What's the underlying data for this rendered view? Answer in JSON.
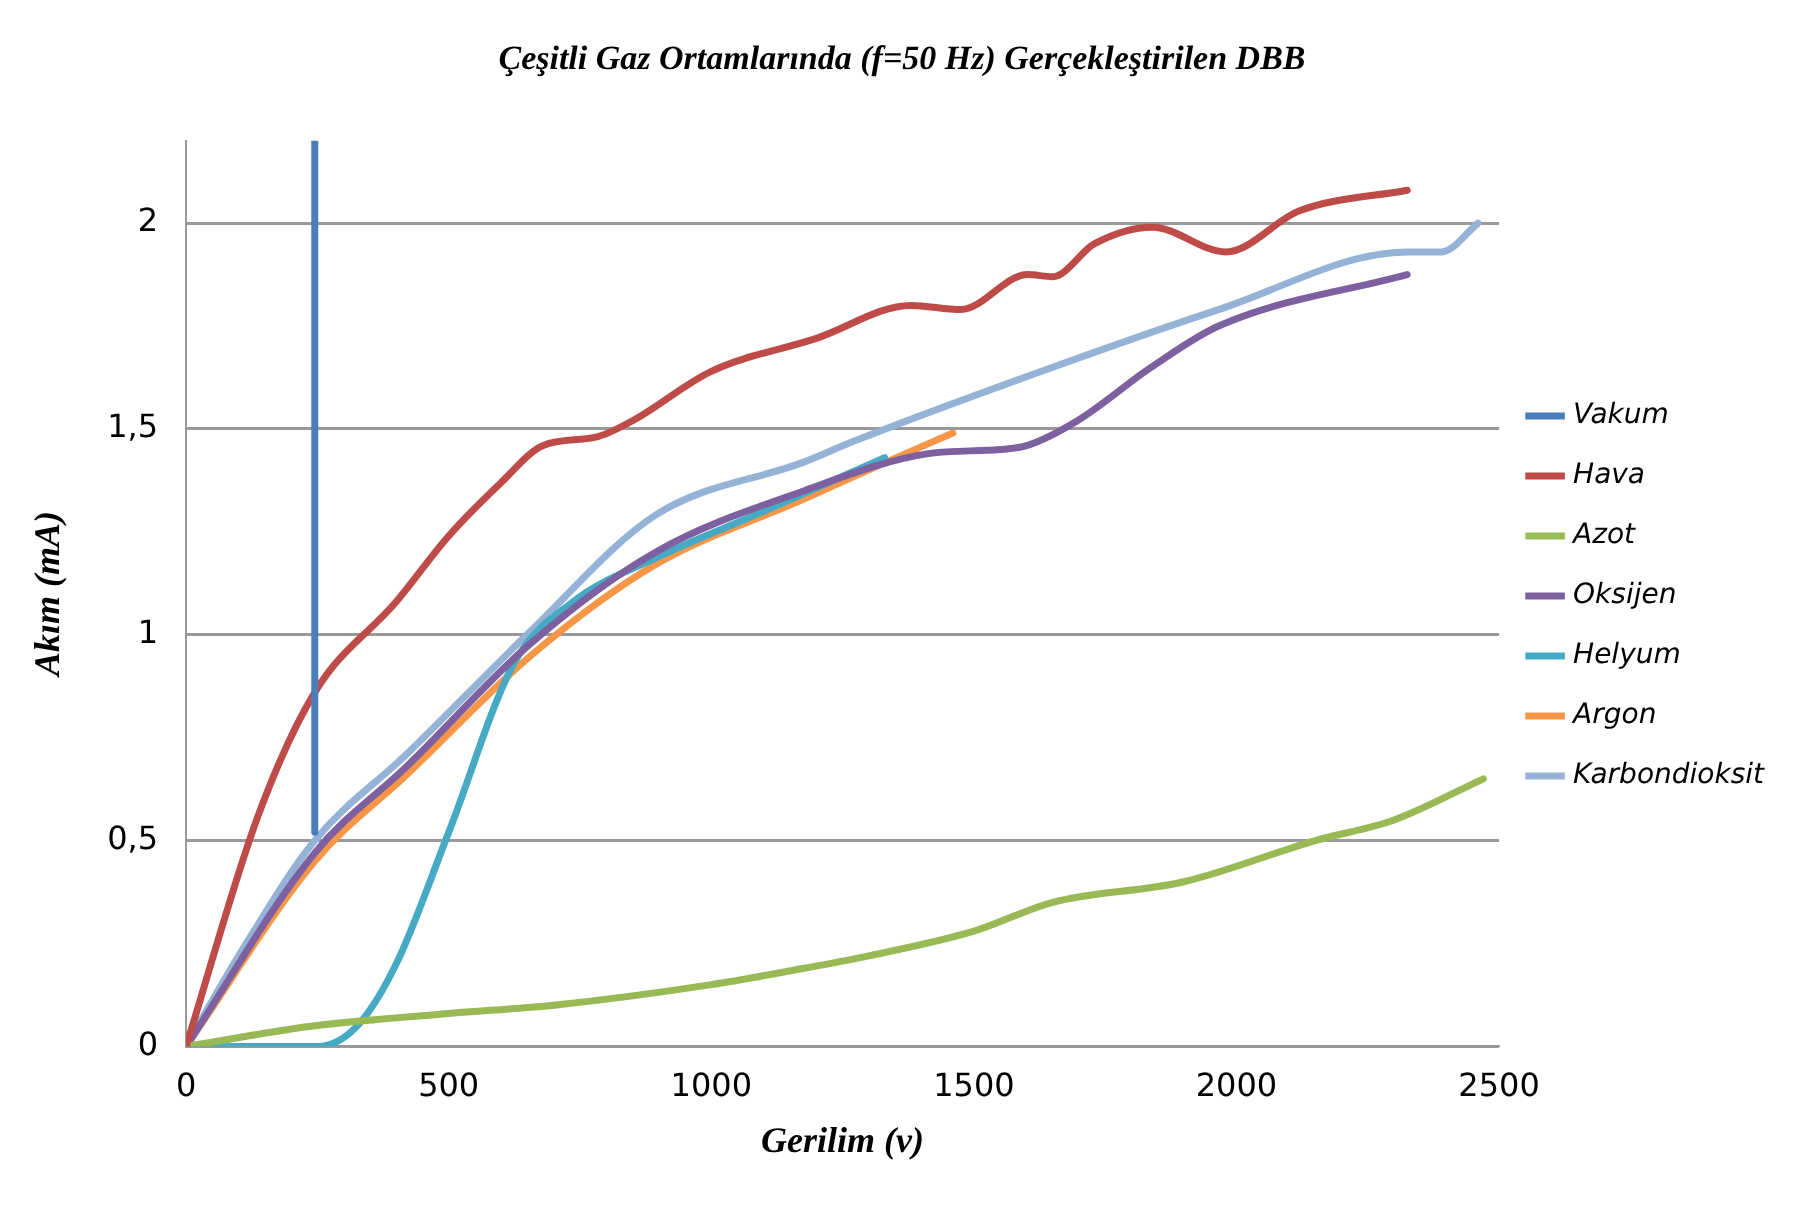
{
  "chart_data": {
    "type": "line",
    "title": "Çeşitli Gaz Ortamlarında (f=50 Hz) Gerçekleştirilen DBB",
    "xlabel": "Gerilim (v)",
    "ylabel": "Akım (mA)",
    "xlim": [
      0,
      2500
    ],
    "xticks": [
      0,
      500,
      1000,
      1500,
      2000,
      2500
    ],
    "ylim": [
      0,
      2.2
    ],
    "yticks": [
      0,
      {
        "value": 0.5,
        "label": "0,5"
      },
      1,
      {
        "value": 1.5,
        "label": "1,5"
      },
      2
    ],
    "grid": "y",
    "legend": "right",
    "marker": "none",
    "line_style": "solid",
    "series": [
      {
        "name": "Vakum",
        "color": "#4a7ebb",
        "x": [
          245,
          245
        ],
        "values": [
          0.52,
          2.2
        ]
      },
      {
        "name": "Hava",
        "color": "#be4b48",
        "x": [
          0,
          137,
          245,
          400,
          500,
          600,
          680,
          780,
          850,
          1000,
          1200,
          1380,
          1475,
          1602,
          1650,
          1730,
          1840,
          1980,
          2120,
          2325
        ],
        "values": [
          0,
          0.56,
          0.86,
          1.08,
          1.24,
          1.37,
          1.46,
          1.48,
          1.52,
          1.64,
          1.72,
          1.8,
          1.79,
          1.875,
          1.87,
          1.95,
          1.99,
          1.93,
          2.03,
          2.08
        ]
      },
      {
        "name": "Azot",
        "color": "#98b954",
        "x": [
          0,
          245,
          500,
          700,
          1000,
          1177,
          1300,
          1500,
          1650,
          1900,
          2150,
          2300,
          2470
        ],
        "values": [
          0,
          0.05,
          0.08,
          0.1,
          0.15,
          0.19,
          0.22,
          0.28,
          0.35,
          0.4,
          0.5,
          0.55,
          0.65
        ]
      },
      {
        "name": "Oksijen",
        "color": "#7d60a0",
        "x": [
          0,
          245,
          420,
          657,
          893,
          1177,
          1413,
          1550,
          1602,
          1697,
          1838,
          1966,
          2325
        ],
        "values": [
          0,
          0.47,
          0.68,
          0.98,
          1.2,
          1.35,
          1.44,
          1.45,
          1.46,
          1.52,
          1.65,
          1.75,
          1.875
        ]
      },
      {
        "name": "Helyum",
        "color": "#46aac5",
        "x": [
          0,
          250,
          326,
          400,
          500,
          624,
          737,
          900,
          1100,
          1330
        ],
        "values": [
          0,
          0,
          0.05,
          0.2,
          0.52,
          0.93,
          1.08,
          1.19,
          1.3,
          1.43
        ]
      },
      {
        "name": "Argon",
        "color": "#f79646",
        "x": [
          0,
          245,
          420,
          657,
          893,
          1177,
          1334,
          1460
        ],
        "values": [
          0,
          0.45,
          0.66,
          0.95,
          1.17,
          1.33,
          1.42,
          1.49
        ]
      },
      {
        "name": "Karbondioksit",
        "color": "#95b3d7",
        "x": [
          0,
          100,
          245,
          420,
          657,
          893,
          1177,
          1271,
          1650,
          1966,
          2325,
          2390,
          2460
        ],
        "values": [
          0,
          0.22,
          0.5,
          0.71,
          1.01,
          1.29,
          1.42,
          1.47,
          1.65,
          1.79,
          1.93,
          1.93,
          2.0
        ]
      }
    ]
  }
}
